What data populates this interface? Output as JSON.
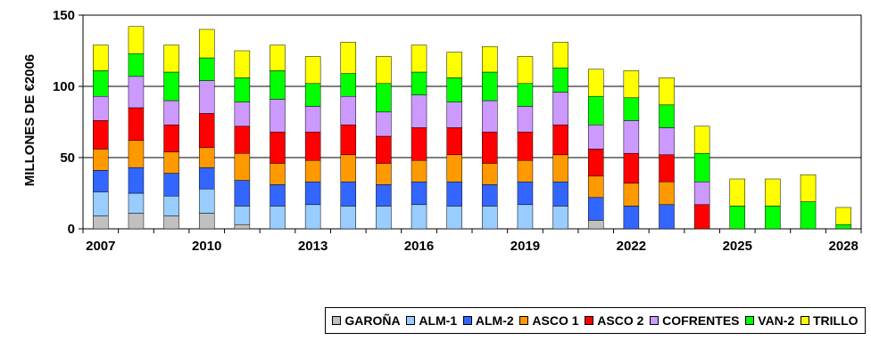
{
  "chart_data": {
    "type": "bar",
    "stacked": true,
    "title": "",
    "xlabel": "",
    "ylabel": "MILLONES DE  €2006",
    "ylim": [
      0,
      150
    ],
    "yticks": [
      "0",
      "50",
      "100",
      "150"
    ],
    "grid": true,
    "legend_position": "bottom",
    "categories": [
      "2007",
      "2008",
      "2009",
      "2010",
      "2011",
      "2012",
      "2013",
      "2014",
      "2015",
      "2016",
      "2017",
      "2018",
      "2019",
      "2020",
      "2021",
      "2022",
      "2023",
      "2024",
      "2025",
      "2026",
      "2027",
      "2028"
    ],
    "xtick_labels": [
      "2007",
      "2010",
      "2013",
      "2016",
      "2019",
      "2022",
      "2025",
      "2028"
    ],
    "series": [
      {
        "name": "GAROÑA",
        "color": "#c0c0c0",
        "values": [
          9,
          11,
          9,
          11,
          3,
          0,
          0,
          0,
          0,
          0,
          0,
          0,
          0,
          0,
          6,
          0,
          0,
          0,
          0,
          0,
          0,
          0
        ]
      },
      {
        "name": "ALM-1",
        "color": "#99ccff",
        "values": [
          17,
          14,
          14,
          17,
          13,
          16,
          17,
          16,
          16,
          17,
          16,
          16,
          17,
          16,
          0,
          0,
          0,
          0,
          0,
          0,
          0,
          0
        ]
      },
      {
        "name": "ALM-2",
        "color": "#3366ff",
        "values": [
          15,
          18,
          16,
          15,
          18,
          15,
          16,
          17,
          15,
          16,
          17,
          15,
          16,
          17,
          16,
          16,
          17,
          0,
          0,
          0,
          0,
          0
        ]
      },
      {
        "name": "ASCO 1",
        "color": "#ff9900",
        "values": [
          15,
          19,
          15,
          14,
          19,
          15,
          15,
          19,
          15,
          15,
          19,
          15,
          15,
          19,
          15,
          16,
          16,
          0,
          0,
          0,
          0,
          0
        ]
      },
      {
        "name": "ASCO 2",
        "color": "#ff0000",
        "values": [
          20,
          23,
          19,
          24,
          19,
          22,
          20,
          21,
          19,
          23,
          19,
          22,
          20,
          21,
          19,
          21,
          19,
          17,
          0,
          0,
          0,
          0
        ]
      },
      {
        "name": "COFRENTES",
        "color": "#cc99ff",
        "values": [
          17,
          22,
          17,
          23,
          17,
          23,
          18,
          20,
          17,
          23,
          18,
          22,
          18,
          23,
          17,
          23,
          19,
          16,
          0,
          0,
          0,
          0
        ]
      },
      {
        "name": "VAN-2",
        "color": "#00ff00",
        "values": [
          18,
          16,
          20,
          16,
          17,
          20,
          16,
          16,
          20,
          16,
          17,
          20,
          16,
          17,
          20,
          16,
          16,
          20,
          16,
          16,
          19,
          3
        ]
      },
      {
        "name": "TRILLO",
        "color": "#ffff00",
        "values": [
          18,
          19,
          19,
          20,
          19,
          18,
          19,
          22,
          19,
          19,
          18,
          18,
          19,
          18,
          19,
          19,
          19,
          19,
          19,
          19,
          19,
          12
        ]
      }
    ]
  }
}
